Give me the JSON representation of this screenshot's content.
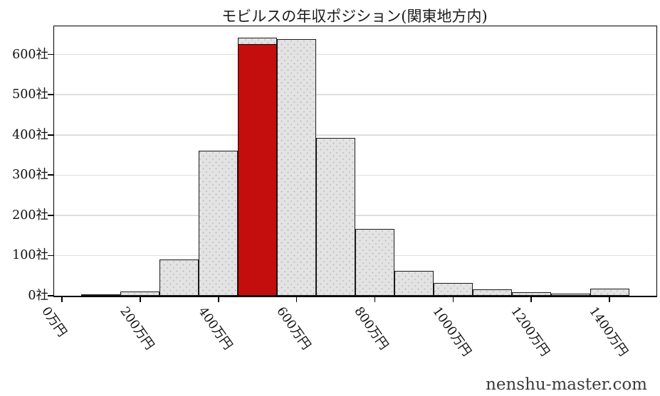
{
  "title": "モビルスの年収ポジション(関東地方内)",
  "footer": "nenshu-master.com",
  "chart_data": {
    "type": "bar",
    "title": "モビルスの年収ポジション(関東地方内)",
    "xlabel": "",
    "ylabel": "",
    "unit_x": "万円",
    "unit_y": "社",
    "bin_width": 100,
    "categories": [
      100,
      200,
      300,
      400,
      500,
      600,
      700,
      800,
      900,
      1000,
      1100,
      1200,
      1300,
      1400
    ],
    "values": [
      3,
      10,
      91,
      360,
      642,
      639,
      392,
      167,
      62,
      31,
      16,
      8,
      6,
      18
    ],
    "highlight": {
      "category": 500,
      "value": 626,
      "color": "#c40d0d"
    },
    "x_ticks": [
      0,
      200,
      400,
      600,
      800,
      1000,
      1200,
      1400
    ],
    "x_tick_labels": [
      "0万円",
      "200万円",
      "400万円",
      "600万円",
      "800万円",
      "1000万円",
      "1200万円",
      "1400万円"
    ],
    "y_ticks": [
      0,
      100,
      200,
      300,
      400,
      500,
      600
    ],
    "y_tick_labels": [
      "0社",
      "100社",
      "200社",
      "300社",
      "400社",
      "500社",
      "600社"
    ],
    "xlim": [
      -20,
      1520
    ],
    "ylim": [
      0,
      670
    ],
    "grid": "horizontal",
    "legend": "none",
    "colors": {
      "bar_fill": "#e3e3e3",
      "bar_hatch_dot": "#b9b9b9",
      "bar_edge": "#1a1a1a",
      "highlight_fill": "#c40d0d",
      "gridline": "#dedede",
      "spine": "#000000",
      "text": "#1a1a1a"
    }
  }
}
